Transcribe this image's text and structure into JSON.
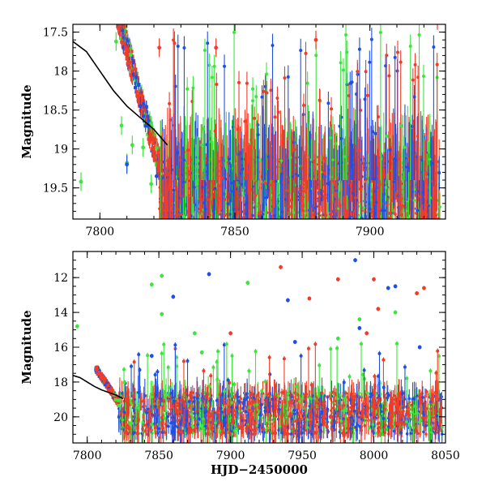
{
  "chart_data": [
    {
      "type": "scatter",
      "panel": "top",
      "xlabel": "",
      "ylabel": "Magnitude",
      "xlim": [
        7790,
        7928
      ],
      "ylim": [
        19.9,
        17.4
      ],
      "y_inverted": true,
      "x_ticks": [
        7800,
        7850,
        7900
      ],
      "y_ticks": [
        17.5,
        18,
        18.5,
        19,
        19.5
      ],
      "x_tick_labels": [
        "7800",
        "7850",
        "7900"
      ],
      "y_tick_labels": [
        "17.5",
        "18",
        "18.5",
        "19",
        "19.5"
      ],
      "grid": false,
      "legend": "none",
      "series": [
        {
          "color": "#3ce63c",
          "description_points": [
            [
              7793,
              19.42
            ],
            [
              7806,
              17.62
            ],
            [
              7808,
              18.7
            ],
            [
              7810,
              19.18
            ],
            [
              7812,
              18.95
            ],
            [
              7816,
              18.98
            ],
            [
              7819,
              19.45
            ]
          ]
        },
        {
          "color": "#1e50e6",
          "description_points": [
            [
              7810,
              19.2
            ],
            [
              7815,
              18.45
            ],
            [
              7818,
              18.7
            ],
            [
              7821,
              19.35
            ]
          ]
        },
        {
          "color": "#f03c28",
          "description_points": [
            [
              7808,
              17.35
            ],
            [
              7822,
              17.7
            ],
            [
              7843,
              17.7
            ],
            [
              7880,
              17.6
            ],
            [
              7925,
              17.35
            ]
          ]
        }
      ],
      "model_curve": {
        "color": "#000000",
        "x": [
          7790,
          7795,
          7800,
          7805,
          7810,
          7815,
          7820,
          7825
        ],
        "y": [
          17.62,
          17.75,
          18.0,
          18.25,
          18.45,
          18.6,
          18.75,
          18.95
        ]
      }
    },
    {
      "type": "scatter",
      "panel": "bottom",
      "xlabel": "HJD−2450000",
      "ylabel": "Magnitude",
      "xlim": [
        7790,
        8050
      ],
      "ylim": [
        21.5,
        10.5
      ],
      "y_inverted": true,
      "x_ticks": [
        7800,
        7850,
        7900,
        7950,
        8000,
        8050
      ],
      "y_ticks": [
        12,
        14,
        16,
        18,
        20
      ],
      "x_tick_labels": [
        "7800",
        "7850",
        "7900",
        "7950",
        "8000",
        "8050"
      ],
      "y_tick_labels": [
        "12",
        "14",
        "16",
        "18",
        "20"
      ],
      "grid": false,
      "legend": "none",
      "series": [
        {
          "color": "#3ce63c",
          "description_points": [
            [
              7793,
              14.8
            ],
            [
              7845,
              12.4
            ],
            [
              7852,
              11.9
            ],
            [
              7852,
              14.1
            ],
            [
              7875,
              15.2
            ],
            [
              7880,
              16.3
            ],
            [
              7912,
              12.3
            ],
            [
              7975,
              15.5
            ],
            [
              7990,
              14.4
            ],
            [
              8015,
              14.0
            ]
          ]
        },
        {
          "color": "#1e50e6",
          "description_points": [
            [
              7845,
              16.5
            ],
            [
              7860,
              13.1
            ],
            [
              7885,
              11.8
            ],
            [
              7940,
              13.3
            ],
            [
              7945,
              15.7
            ],
            [
              7987,
              11.0
            ],
            [
              7990,
              14.9
            ],
            [
              8010,
              12.6
            ],
            [
              8015,
              12.5
            ],
            [
              8032,
              16.0
            ]
          ]
        },
        {
          "color": "#f03c28",
          "description_points": [
            [
              7900,
              15.2
            ],
            [
              7935,
              11.4
            ],
            [
              7955,
              13.2
            ],
            [
              7975,
              12.1
            ],
            [
              7995,
              15.2
            ],
            [
              8000,
              12.1
            ],
            [
              8003,
              13.8
            ],
            [
              8030,
              12.9
            ],
            [
              8035,
              12.6
            ]
          ]
        }
      ],
      "model_curve": {
        "color": "#000000",
        "x": [
          7790,
          7795,
          7800,
          7805,
          7810,
          7815,
          7820,
          7825
        ],
        "y": [
          17.62,
          17.75,
          18.0,
          18.25,
          18.45,
          18.6,
          18.75,
          18.95
        ]
      }
    }
  ]
}
